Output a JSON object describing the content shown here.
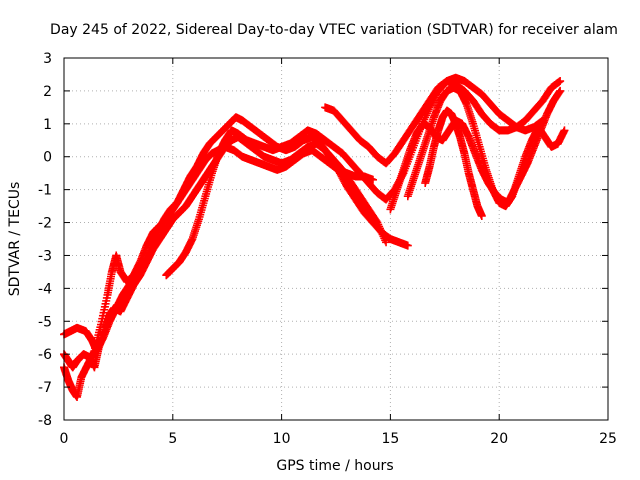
{
  "chart_data": {
    "type": "scatter",
    "title": "Day 245 of 2022, Sidereal Day-to-day VTEC variation (SDTVAR) for receiver alam",
    "xlabel": "GPS time / hours",
    "ylabel": "SDTVAR / TECUs",
    "xlim": [
      0,
      25
    ],
    "ylim": [
      -8,
      3
    ],
    "xticks": [
      0,
      5,
      10,
      15,
      20,
      25
    ],
    "yticks": [
      -8,
      -7,
      -6,
      -5,
      -4,
      -3,
      -2,
      -1,
      0,
      1,
      2,
      3
    ],
    "grid": true,
    "legend": "none",
    "marker": "+",
    "color": "#ff0000",
    "series": [
      {
        "x": [
          0.0,
          0.3,
          0.6,
          1.0,
          1.3,
          1.5,
          1.8,
          2.1,
          2.4,
          2.7,
          3.0,
          3.3,
          3.6,
          4.0,
          4.3,
          4.6,
          4.9,
          5.2,
          5.5,
          5.8,
          6.1,
          6.4,
          6.7,
          7.0,
          7.3,
          7.6,
          7.9,
          8.2,
          8.6,
          9.0,
          9.4,
          9.8,
          10.2,
          10.6,
          11.0,
          11.4,
          11.8,
          12.2,
          12.6,
          13.0,
          13.4,
          13.8,
          14.2,
          14.6,
          15.0,
          15.4,
          15.8
        ],
        "y": [
          -5.4,
          -5.3,
          -5.2,
          -5.3,
          -5.6,
          -5.9,
          -5.5,
          -5.0,
          -4.6,
          -4.2,
          -3.9,
          -3.7,
          -3.3,
          -2.8,
          -2.3,
          -1.9,
          -1.6,
          -1.4,
          -1.0,
          -0.6,
          -0.3,
          0.1,
          0.4,
          0.6,
          0.8,
          1.0,
          1.2,
          1.1,
          0.9,
          0.7,
          0.5,
          0.3,
          0.2,
          0.3,
          0.5,
          0.6,
          0.4,
          0.0,
          -0.4,
          -0.9,
          -1.3,
          -1.7,
          -2.0,
          -2.3,
          -2.5,
          -2.6,
          -2.7
        ]
      },
      {
        "x": [
          0.0,
          0.2,
          0.4,
          0.6,
          0.9,
          1.2,
          1.4,
          1.6,
          1.9,
          2.1,
          2.3,
          2.6,
          2.9,
          3.2,
          3.5,
          3.8,
          4.1,
          4.4,
          4.7,
          5.0,
          5.3,
          5.6,
          5.9,
          6.2,
          6.5,
          6.8,
          7.1,
          7.4,
          7.7,
          8.0,
          8.4,
          8.8,
          9.2,
          9.6,
          10.0,
          10.4,
          10.8,
          11.2,
          11.6,
          12.0,
          12.4,
          12.8,
          13.2,
          13.6,
          14.0,
          14.4,
          14.8
        ],
        "y": [
          -6.0,
          -6.2,
          -6.4,
          -6.2,
          -6.0,
          -6.1,
          -6.4,
          -5.8,
          -5.2,
          -4.8,
          -4.6,
          -4.7,
          -4.3,
          -3.9,
          -3.6,
          -3.2,
          -2.8,
          -2.5,
          -2.2,
          -1.9,
          -1.7,
          -1.5,
          -1.2,
          -0.9,
          -0.6,
          -0.3,
          0.0,
          0.3,
          0.5,
          0.6,
          0.4,
          0.2,
          0.0,
          -0.1,
          -0.2,
          -0.1,
          0.1,
          0.3,
          0.4,
          0.2,
          -0.1,
          -0.4,
          -0.8,
          -1.2,
          -1.6,
          -2.0,
          -2.6
        ]
      },
      {
        "x": [
          0.0,
          0.2,
          0.4,
          0.6,
          0.8,
          1.1,
          1.4,
          1.7,
          2.0,
          2.2,
          2.4,
          2.6,
          2.9,
          3.2,
          3.5,
          3.8,
          4.1,
          4.4,
          4.7,
          5.0,
          5.3,
          5.6,
          5.9,
          6.2,
          6.5,
          6.8,
          7.1,
          7.4,
          7.8,
          8.2,
          8.6,
          9.0,
          9.4,
          9.8,
          10.2,
          10.6,
          11.0,
          11.4,
          11.8,
          12.2,
          12.6,
          13.0,
          13.4,
          13.8,
          14.2
        ],
        "y": [
          -6.4,
          -6.8,
          -7.1,
          -7.3,
          -6.7,
          -6.3,
          -5.9,
          -5.1,
          -4.2,
          -3.5,
          -3.0,
          -3.5,
          -3.8,
          -3.6,
          -3.2,
          -2.7,
          -2.3,
          -2.1,
          -1.9,
          -1.6,
          -1.3,
          -1.0,
          -0.7,
          -0.4,
          -0.1,
          0.1,
          0.2,
          0.3,
          0.2,
          0.0,
          -0.1,
          -0.2,
          -0.3,
          -0.4,
          -0.3,
          -0.1,
          0.1,
          0.2,
          0.0,
          -0.2,
          -0.4,
          -0.5,
          -0.6,
          -0.6,
          -0.7
        ]
      },
      {
        "x": [
          4.7,
          5.0,
          5.3,
          5.6,
          5.9,
          6.2,
          6.5,
          6.8,
          7.1,
          7.4,
          7.7,
          8.0,
          8.4,
          8.8,
          9.2,
          9.6,
          10.0,
          10.4,
          10.8,
          11.2,
          11.6,
          12.0,
          12.4,
          12.8,
          13.2,
          13.6,
          14.0,
          14.4,
          14.8,
          15.2,
          15.6,
          16.0,
          16.4,
          16.8,
          17.2,
          17.6,
          18.0,
          18.4,
          18.8,
          19.2,
          19.6,
          20.0,
          20.4,
          20.8,
          21.2,
          21.6,
          22.0
        ],
        "y": [
          -3.6,
          -3.4,
          -3.2,
          -2.9,
          -2.5,
          -1.9,
          -1.2,
          -0.5,
          0.1,
          0.5,
          0.8,
          0.7,
          0.5,
          0.4,
          0.3,
          0.2,
          0.3,
          0.4,
          0.6,
          0.8,
          0.7,
          0.5,
          0.3,
          0.1,
          -0.2,
          -0.5,
          -0.8,
          -1.1,
          -1.3,
          -1.0,
          -0.5,
          0.2,
          0.9,
          1.5,
          2.0,
          2.3,
          2.4,
          2.3,
          2.1,
          1.9,
          1.6,
          1.3,
          1.1,
          0.9,
          0.8,
          0.9,
          1.1
        ]
      },
      {
        "x": [
          12.0,
          12.4,
          12.8,
          13.2,
          13.6,
          14.0,
          14.4,
          14.8,
          15.2,
          15.6,
          16.0,
          16.4,
          16.8,
          17.2,
          17.6,
          18.0,
          18.4,
          18.8,
          19.2,
          19.6,
          20.0,
          20.4,
          20.8,
          21.2,
          21.6,
          22.0,
          22.4,
          22.8
        ],
        "y": [
          1.5,
          1.4,
          1.1,
          0.8,
          0.5,
          0.3,
          0.0,
          -0.2,
          0.1,
          0.5,
          0.9,
          1.3,
          1.7,
          2.1,
          2.3,
          2.2,
          2.0,
          1.7,
          1.3,
          1.0,
          0.8,
          0.8,
          0.9,
          1.1,
          1.4,
          1.7,
          2.1,
          2.3
        ]
      },
      {
        "x": [
          15.0,
          15.3,
          15.6,
          15.9,
          16.2,
          16.5,
          16.8,
          17.1,
          17.4,
          17.7,
          18.0,
          18.3,
          18.6,
          18.9,
          19.2,
          19.5,
          19.8,
          20.1,
          20.4,
          20.7,
          21.0,
          21.3,
          21.6,
          21.9,
          22.2,
          22.5,
          22.8
        ],
        "y": [
          -1.6,
          -1.0,
          -0.4,
          0.2,
          0.7,
          1.0,
          0.9,
          0.6,
          0.5,
          0.8,
          1.1,
          1.0,
          0.6,
          0.1,
          -0.4,
          -0.8,
          -1.1,
          -1.3,
          -1.4,
          -1.0,
          -0.6,
          -0.2,
          0.3,
          0.8,
          1.3,
          1.7,
          2.0
        ]
      },
      {
        "x": [
          15.8,
          16.1,
          16.4,
          16.7,
          17.0,
          17.3,
          17.6,
          17.9,
          18.2,
          18.5,
          18.8,
          19.1,
          19.4,
          19.7,
          20.0,
          20.3,
          20.6,
          20.9,
          21.2,
          21.5,
          21.8,
          22.1,
          22.4,
          22.7,
          23.0
        ],
        "y": [
          -1.2,
          -0.6,
          0.0,
          0.6,
          1.2,
          1.7,
          2.0,
          2.1,
          2.0,
          1.6,
          1.0,
          0.3,
          -0.4,
          -1.0,
          -1.4,
          -1.5,
          -1.2,
          -0.6,
          0.0,
          0.5,
          0.9,
          0.6,
          0.3,
          0.4,
          0.8
        ]
      },
      {
        "x": [
          16.6,
          16.8,
          17.0,
          17.2,
          17.4,
          17.6,
          17.8,
          18.0,
          18.2,
          18.4,
          18.6,
          18.8,
          19.0,
          19.2
        ],
        "y": [
          -0.8,
          -0.3,
          0.3,
          0.8,
          1.2,
          1.4,
          1.3,
          1.0,
          0.6,
          0.1,
          -0.5,
          -1.0,
          -1.5,
          -1.8
        ]
      }
    ]
  }
}
